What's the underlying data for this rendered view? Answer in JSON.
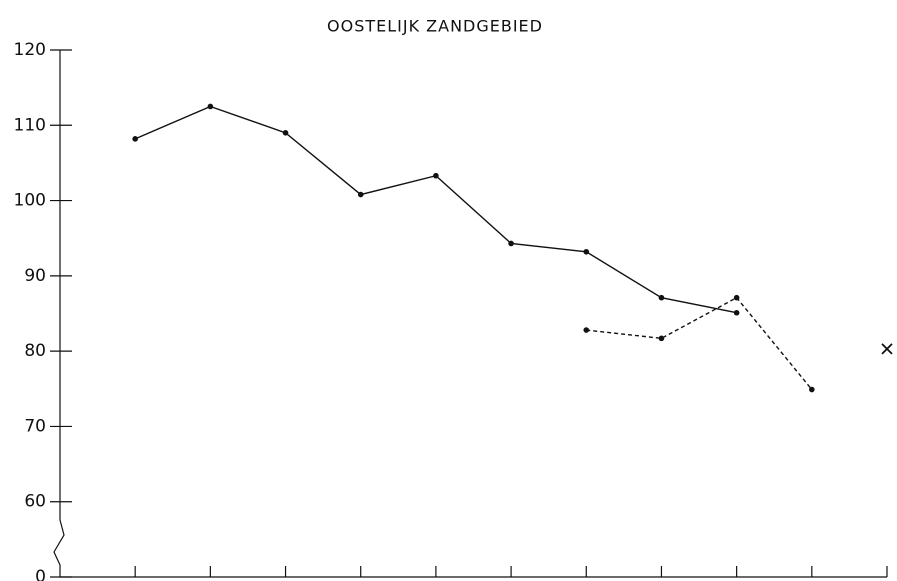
{
  "chart_data": {
    "type": "line",
    "title": "OOSTELIJK ZANDGEBIED",
    "categories": [
      null,
      null,
      null,
      null,
      null,
      null,
      null,
      null,
      null,
      null,
      null
    ],
    "series": [
      {
        "color": "#111111",
        "dash": false,
        "marker": "dot",
        "values": [
          108.2,
          112.5,
          109.0,
          100.8,
          103.3,
          94.3,
          93.2,
          87.1,
          85.1,
          null,
          null
        ]
      },
      {
        "color": "#111111",
        "dash": true,
        "marker": "dot",
        "values": [
          null,
          null,
          null,
          null,
          null,
          null,
          82.8,
          81.7,
          87.1,
          74.9,
          null
        ]
      },
      {
        "color": "#111111",
        "dash": false,
        "marker": "x",
        "values": [
          null,
          null,
          null,
          null,
          null,
          null,
          null,
          null,
          null,
          null,
          80.3
        ]
      }
    ],
    "ylim": [
      50,
      120
    ],
    "yticks": [
      0,
      60,
      70,
      80,
      90,
      100,
      110,
      120
    ],
    "axis_break": true,
    "grid": false
  }
}
